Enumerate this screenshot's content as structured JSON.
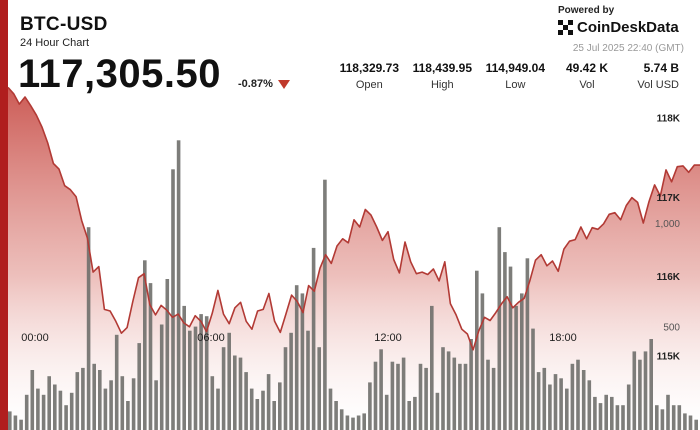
{
  "header": {
    "symbol": "BTC-USD",
    "subtitle": "24 Hour Chart",
    "price": "117,305.50",
    "change_pct": "-0.87%",
    "change_direction": "down",
    "timestamp": "25 Jul 2025 22:40 (GMT)"
  },
  "branding": {
    "powered_by": "Powered by",
    "name": "CoinDeskData",
    "icon": "coindesk-logo-icon"
  },
  "stats": [
    {
      "value": "118,329.73",
      "label": "Open"
    },
    {
      "value": "118,439.95",
      "label": "High"
    },
    {
      "value": "114,949.04",
      "label": "Low"
    },
    {
      "value": "49.42 K",
      "label": "Vol"
    },
    {
      "value": "5.74 B",
      "label": "Vol USD"
    }
  ],
  "colors": {
    "accent": "#b01e1e",
    "line": "#b23a35",
    "area_top": "#c9524c",
    "volume_bar": "#6f6f6b",
    "down": "#c0392b"
  },
  "chart_data": {
    "type": "area",
    "x_labels": [
      "00:00",
      "06:00",
      "12:00",
      "18:00"
    ],
    "price_axis": {
      "ticks": [
        115000,
        116000,
        117000,
        118000
      ],
      "tick_labels": [
        "115K",
        "116K",
        "117K",
        "118K"
      ],
      "range": [
        114500,
        118600
      ]
    },
    "volume_axis": {
      "ticks": [
        500,
        1000
      ],
      "tick_labels": [
        "500",
        "1,000"
      ],
      "range": [
        0,
        1450
      ]
    },
    "price_series": [
      118380,
      118300,
      118170,
      118260,
      118150,
      118030,
      117880,
      117680,
      117420,
      117350,
      117140,
      117090,
      117000,
      116700,
      116480,
      116050,
      116120,
      115580,
      115560,
      115430,
      115280,
      115350,
      115680,
      115980,
      116030,
      115640,
      115510,
      115630,
      115570,
      115480,
      115520,
      115410,
      115360,
      115500,
      115430,
      115300,
      115530,
      115820,
      115520,
      115400,
      115600,
      115670,
      115430,
      115330,
      115560,
      115580,
      115780,
      115430,
      115290,
      115520,
      115760,
      115680,
      115540,
      115880,
      115810,
      116100,
      116270,
      116160,
      116380,
      116470,
      116420,
      116710,
      116620,
      116840,
      116770,
      116620,
      116450,
      116560,
      116210,
      116040,
      116430,
      116180,
      116030,
      116050,
      116020,
      116090,
      115940,
      116180,
      115650,
      115510,
      115330,
      115270,
      115070,
      115310,
      115480,
      115440,
      115540,
      115650,
      115740,
      115600,
      115670,
      115720,
      115940,
      116200,
      116270,
      116130,
      116190,
      116060,
      116340,
      116440,
      116460,
      116620,
      116470,
      116610,
      116590,
      116660,
      116780,
      116800,
      116710,
      116890,
      116990,
      116930,
      116670,
      116940,
      117150,
      117010,
      117340,
      117190,
      117380,
      117390,
      117310,
      117400,
      117400
    ],
    "volume_series": [
      90,
      70,
      50,
      170,
      290,
      200,
      170,
      260,
      220,
      190,
      120,
      180,
      280,
      300,
      980,
      320,
      290,
      200,
      240,
      460,
      260,
      140,
      250,
      420,
      820,
      710,
      240,
      510,
      730,
      1260,
      1400,
      600,
      480,
      500,
      560,
      550,
      260,
      200,
      400,
      470,
      360,
      350,
      280,
      200,
      150,
      190,
      270,
      140,
      230,
      400,
      470,
      700,
      660,
      480,
      880,
      400,
      1210,
      200,
      140,
      100,
      70,
      60,
      70,
      80,
      230,
      330,
      390,
      170,
      330,
      320,
      350,
      140,
      160,
      320,
      300,
      600,
      180,
      400,
      380,
      350,
      320,
      320,
      440,
      770,
      660,
      340,
      300,
      980,
      860,
      790,
      600,
      660,
      830,
      490,
      280,
      300,
      220,
      270,
      250,
      200,
      320,
      340,
      290,
      240,
      160,
      130,
      170,
      160,
      120,
      120,
      220,
      380,
      340,
      380,
      440,
      120,
      100,
      170,
      120,
      120,
      80,
      70,
      50
    ]
  }
}
